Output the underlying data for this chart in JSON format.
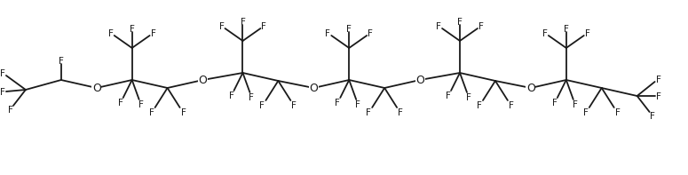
{
  "background_color": "#ffffff",
  "line_color": "#1a1a1a",
  "font_size": 7.5,
  "line_width": 1.3,
  "backbone": [
    [
      28,
      102,
      "CF3_L"
    ],
    [
      68,
      91,
      "CHF"
    ],
    [
      108,
      100,
      "O"
    ],
    [
      148,
      91,
      "qC"
    ],
    [
      188,
      100,
      "CF2"
    ],
    [
      228,
      91,
      "O"
    ],
    [
      273,
      83,
      "qC"
    ],
    [
      313,
      92,
      "CF2"
    ],
    [
      353,
      100,
      "O"
    ],
    [
      393,
      91,
      "qC"
    ],
    [
      433,
      100,
      "CF2"
    ],
    [
      473,
      91,
      "O"
    ],
    [
      518,
      83,
      "qC"
    ],
    [
      558,
      92,
      "CF2"
    ],
    [
      598,
      100,
      "O"
    ],
    [
      638,
      91,
      "qC"
    ],
    [
      678,
      100,
      "CF2"
    ],
    [
      718,
      109,
      "CF3_R"
    ]
  ]
}
